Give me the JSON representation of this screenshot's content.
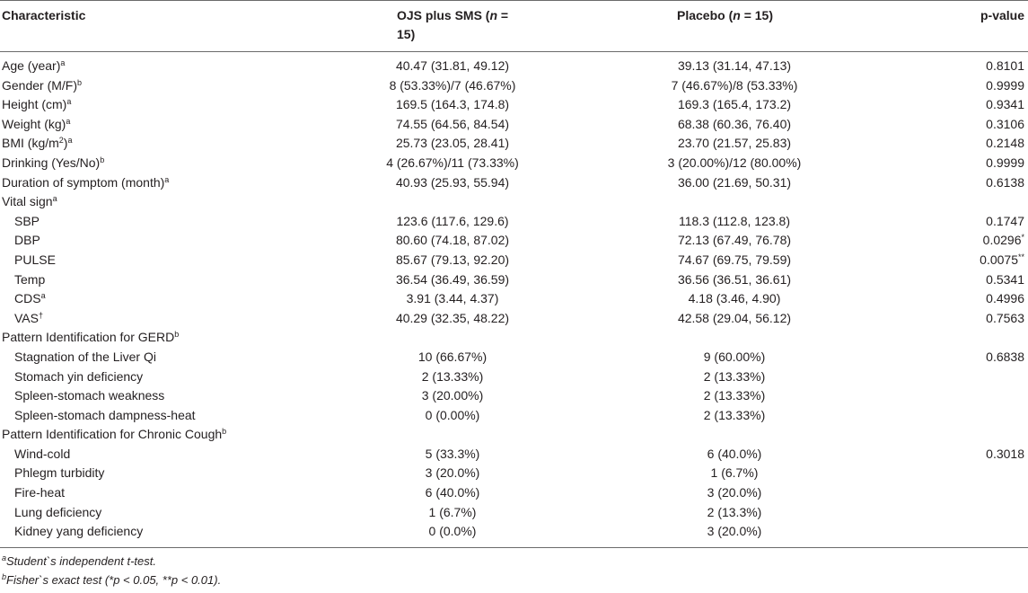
{
  "header": {
    "characteristic": "Characteristic",
    "group1_line1": "OJS plus SMS (",
    "group1_n": "n",
    "group1_line1_end": " =",
    "group1_line2": "15)",
    "group2_pre": "Placebo (",
    "group2_n": "n",
    "group2_post": " = 15)",
    "pvalue": "p-value"
  },
  "rows": [
    {
      "label": "Age (year)",
      "sup": "a",
      "indent": false,
      "g1": "40.47 (31.81, 49.12)",
      "g2": "39.13 (31.14, 47.13)",
      "p": "0.8101",
      "psup": ""
    },
    {
      "label": "Gender (M/F)",
      "sup": "b",
      "indent": false,
      "g1": "8 (53.33%)/7 (46.67%)",
      "g2": "7 (46.67%)/8 (53.33%)",
      "p": "0.9999",
      "psup": ""
    },
    {
      "label": "Height (cm)",
      "sup": "a",
      "indent": false,
      "g1": "169.5 (164.3, 174.8)",
      "g2": "169.3 (165.4, 173.2)",
      "p": "0.9341",
      "psup": ""
    },
    {
      "label": "Weight (kg)",
      "sup": "a",
      "indent": false,
      "g1": "74.55 (64.56, 84.54)",
      "g2": "68.38 (60.36, 76.40)",
      "p": "0.3106",
      "psup": ""
    },
    {
      "label": "BMI (kg/m",
      "sup": "2",
      "label_tail": ")",
      "sup2": "a",
      "indent": false,
      "g1": "25.73 (23.05, 28.41)",
      "g2": "23.70 (21.57, 25.83)",
      "p": "0.2148",
      "psup": ""
    },
    {
      "label": "Drinking (Yes/No)",
      "sup": "b",
      "indent": false,
      "g1": "4 (26.67%)/11 (73.33%)",
      "g2": "3 (20.00%)/12 (80.00%)",
      "p": "0.9999",
      "psup": ""
    },
    {
      "label": "Duration of symptom (month)",
      "sup": "a",
      "indent": false,
      "g1": "40.93 (25.93, 55.94)",
      "g2": "36.00 (21.69, 50.31)",
      "p": "0.6138",
      "psup": ""
    },
    {
      "label": "Vital sign",
      "sup": "a",
      "indent": false,
      "g1": "",
      "g2": "",
      "p": "",
      "psup": ""
    },
    {
      "label": "SBP",
      "sup": "",
      "indent": true,
      "g1": "123.6 (117.6, 129.6)",
      "g2": "118.3 (112.8, 123.8)",
      "p": "0.1747",
      "psup": ""
    },
    {
      "label": "DBP",
      "sup": "",
      "indent": true,
      "g1": "80.60 (74.18, 87.02)",
      "g2": "72.13 (67.49, 76.78)",
      "p": "0.0296",
      "psup": "*"
    },
    {
      "label": "PULSE",
      "sup": "",
      "indent": true,
      "g1": "85.67 (79.13, 92.20)",
      "g2": "74.67 (69.75, 79.59)",
      "p": "0.0075",
      "psup": "**"
    },
    {
      "label": "Temp",
      "sup": "",
      "indent": true,
      "g1": "36.54 (36.49, 36.59)",
      "g2": "36.56 (36.51, 36.61)",
      "p": "0.5341",
      "psup": ""
    },
    {
      "label": "CDS",
      "sup": "a",
      "indent": true,
      "g1": "3.91 (3.44, 4.37)",
      "g2": "4.18 (3.46, 4.90)",
      "p": "0.4996",
      "psup": ""
    },
    {
      "label": "VAS",
      "sup": "†",
      "indent": true,
      "g1": "40.29 (32.35, 48.22)",
      "g2": "42.58 (29.04, 56.12)",
      "p": "0.7563",
      "psup": ""
    },
    {
      "label": "Pattern Identification for GERD",
      "sup": "b",
      "indent": false,
      "g1": "",
      "g2": "",
      "p": "",
      "psup": ""
    },
    {
      "label": "Stagnation of the Liver Qi",
      "sup": "",
      "indent": true,
      "g1": "10 (66.67%)",
      "g2": "9 (60.00%)",
      "p": "0.6838",
      "psup": ""
    },
    {
      "label": "Stomach yin deficiency",
      "sup": "",
      "indent": true,
      "g1": "2 (13.33%)",
      "g2": "2 (13.33%)",
      "p": "",
      "psup": ""
    },
    {
      "label": "Spleen-stomach weakness",
      "sup": "",
      "indent": true,
      "g1": "3 (20.00%)",
      "g2": "2 (13.33%)",
      "p": "",
      "psup": ""
    },
    {
      "label": "Spleen-stomach dampness-heat",
      "sup": "",
      "indent": true,
      "g1": "0 (0.00%)",
      "g2": "2 (13.33%)",
      "p": "",
      "psup": ""
    },
    {
      "label": "Pattern Identification for Chronic Cough",
      "sup": "b",
      "indent": false,
      "g1": "",
      "g2": "",
      "p": "",
      "psup": ""
    },
    {
      "label": "Wind-cold",
      "sup": "",
      "indent": true,
      "g1": "5 (33.3%)",
      "g2": "6 (40.0%)",
      "p": "0.3018",
      "psup": ""
    },
    {
      "label": "Phlegm turbidity",
      "sup": "",
      "indent": true,
      "g1": "3 (20.0%)",
      "g2": "1 (6.7%)",
      "p": "",
      "psup": ""
    },
    {
      "label": "Fire-heat",
      "sup": "",
      "indent": true,
      "g1": "6 (40.0%)",
      "g2": "3 (20.0%)",
      "p": "",
      "psup": ""
    },
    {
      "label": "Lung deficiency",
      "sup": "",
      "indent": true,
      "g1": "1 (6.7%)",
      "g2": "2 (13.3%)",
      "p": "",
      "psup": ""
    },
    {
      "label": "Kidney yang deficiency",
      "sup": "",
      "indent": true,
      "g1": "0 (0.0%)",
      "g2": "3 (20.0%)",
      "p": "",
      "psup": ""
    }
  ],
  "footnotes": [
    {
      "sup": "a",
      "text": "Student`s independent t-test."
    },
    {
      "sup": "b",
      "text": "Fisher`s exact test (*p < 0.05, **p < 0.01)."
    }
  ]
}
